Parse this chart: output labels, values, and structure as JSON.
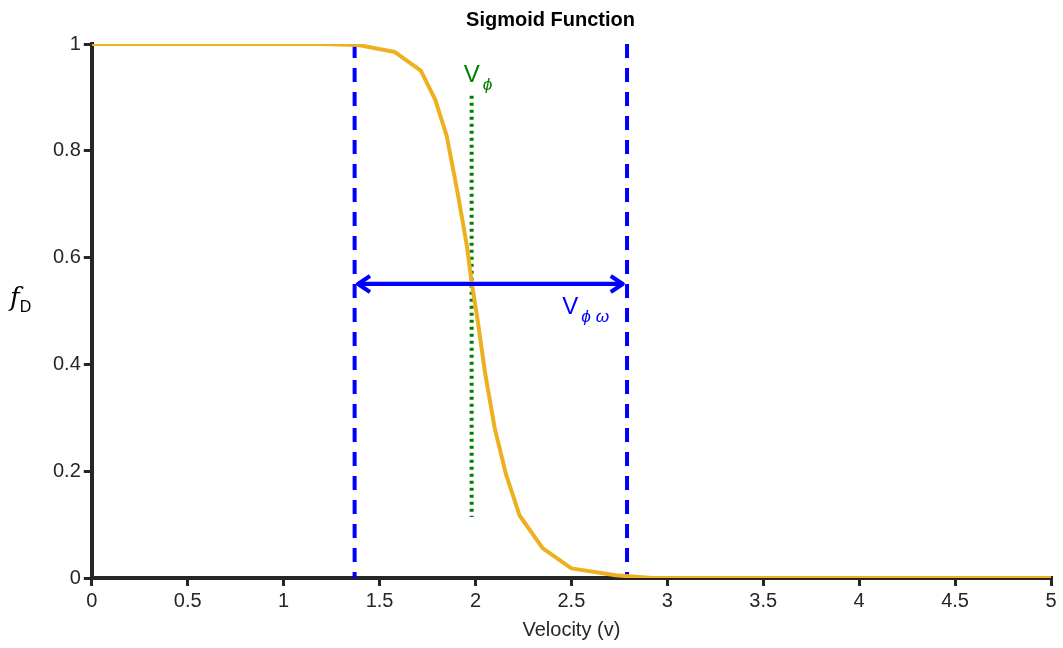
{
  "chart_data": {
    "type": "line",
    "title": "Sigmoid Function",
    "xlabel": "Velocity (v)",
    "ylabel": "f$_{D}$",
    "xlim": [
      0,
      5
    ],
    "xticks": [
      0,
      0.5,
      1,
      1.5,
      2,
      2.5,
      3,
      3.5,
      4,
      4.5,
      5
    ],
    "ylim": [
      0,
      1
    ],
    "yticks": [
      0,
      0.2,
      0.4,
      0.6,
      0.8,
      1
    ],
    "grid": false,
    "legend": false,
    "marker": "none",
    "series": [
      {
        "color": "#edb120",
        "line_style": "solid",
        "x": [
          0,
          0.5,
          1,
          1.2,
          1.39,
          1.58,
          1.715,
          1.79,
          1.85,
          1.905,
          1.955,
          1.98,
          2.01,
          2.05,
          2.1,
          2.16,
          2.23,
          2.35,
          2.5,
          2.73,
          2.92,
          3.5,
          4,
          4.5,
          5
        ],
        "values": [
          1,
          1,
          1,
          1,
          0.998,
          0.985,
          0.95,
          0.896,
          0.828,
          0.725,
          0.623,
          0.554,
          0.486,
          0.384,
          0.281,
          0.193,
          0.117,
          0.056,
          0.018,
          0.005,
          0,
          0,
          0,
          0,
          0
        ]
      },
      {
        "color": "#008000",
        "line_style": "dotted",
        "x": [
          1.98,
          1.98
        ],
        "values": [
          0.903,
          0.114
        ]
      },
      {
        "color": "#0000ff",
        "line_style": "solid",
        "x": [
          1.39,
          2.77
        ],
        "values": [
          0.551,
          0.551
        ]
      }
    ],
    "ref_lines": [
      {
        "axis": "x",
        "value": 1.37,
        "color": "#0000ff",
        "line_style": "dashed"
      },
      {
        "axis": "x",
        "value": 2.79,
        "color": "#0000ff",
        "line_style": "dashed"
      }
    ],
    "annotations": [
      "V$_{ϕ}$",
      "V$_{ϕ ω}$"
    ]
  }
}
